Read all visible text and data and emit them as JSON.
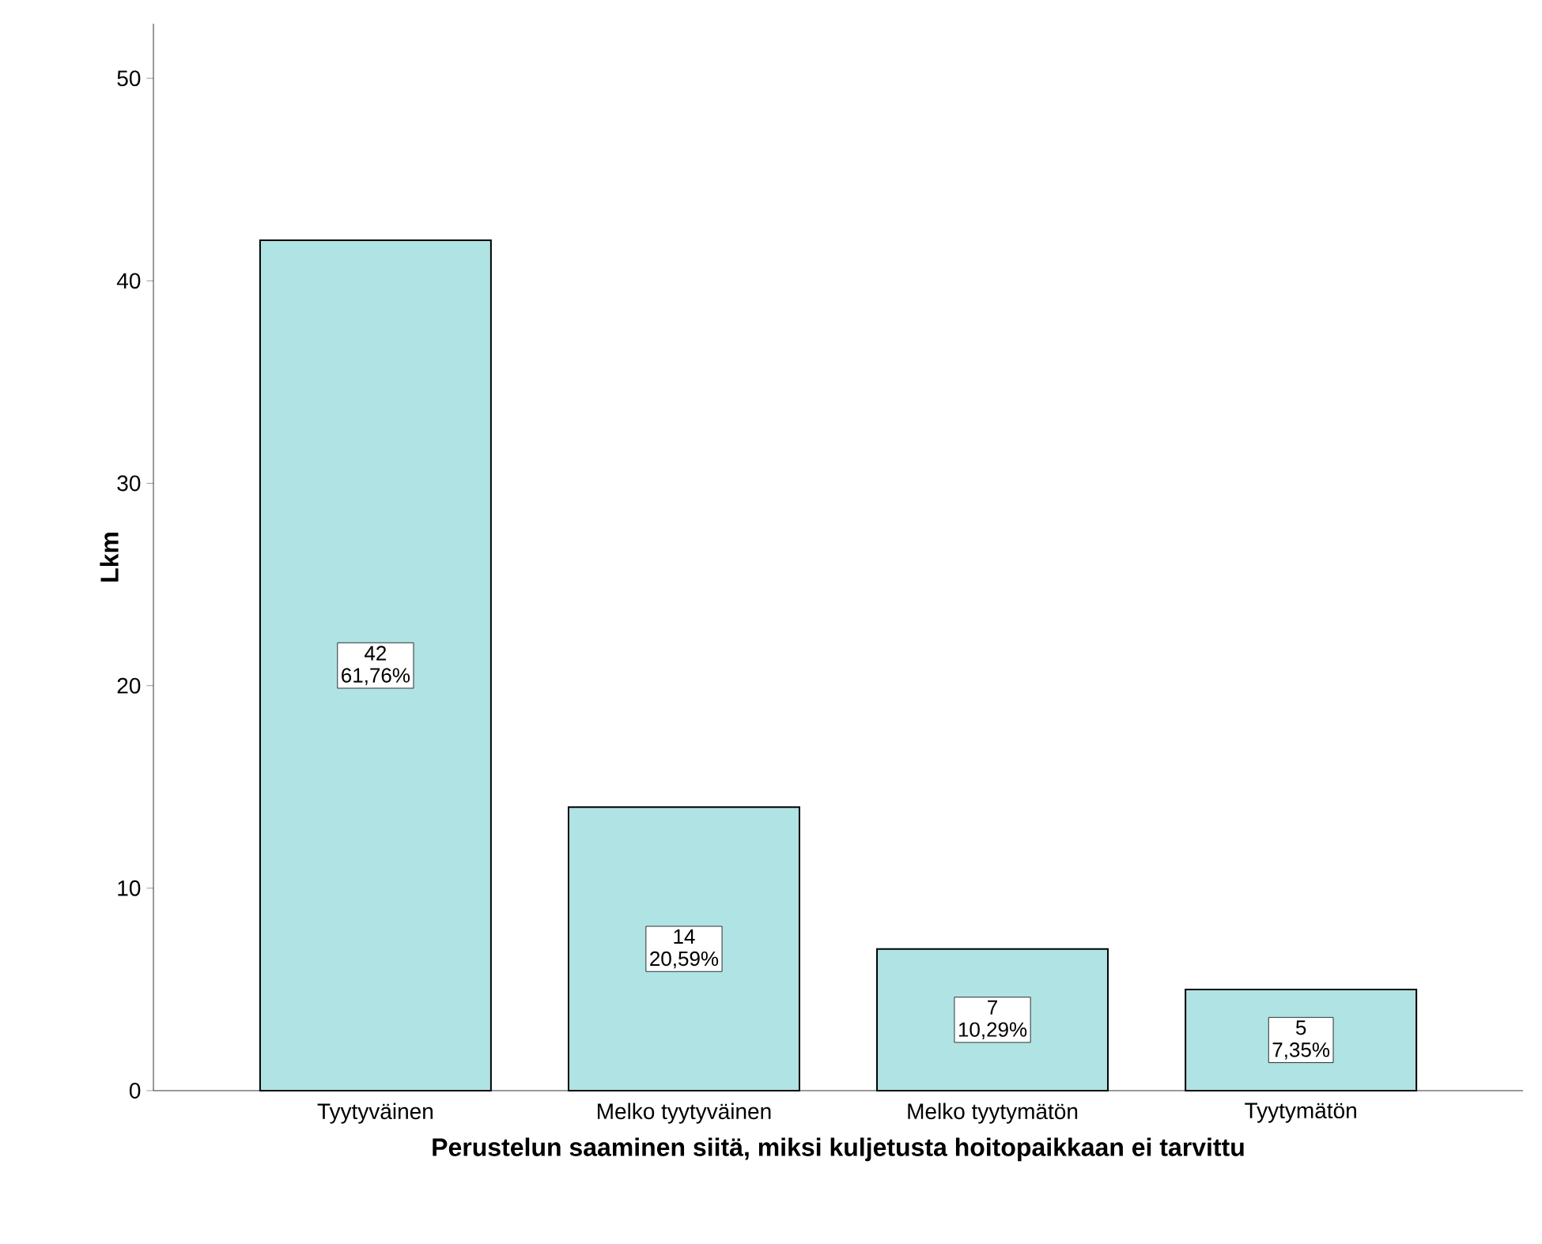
{
  "chart_data": {
    "type": "bar",
    "xlabel": "Perustelun saaminen siitä, miksi kuljetusta hoitopaikkaan ei tarvittu",
    "ylabel": "Lkm",
    "categories": [
      "Tyytyväinen",
      "Melko tyytyväinen",
      "Melko tyytymätön",
      "Tyytymätön"
    ],
    "values": [
      42,
      14,
      7,
      5
    ],
    "value_labels": [
      "42",
      "14",
      "7",
      "5"
    ],
    "annotations": [
      "61,76%",
      "20,59%",
      "10,29%",
      "7,35%"
    ],
    "color": "#b0e3e3",
    "ylim": [
      0,
      52.7
    ],
    "yticks": [
      0,
      10,
      20,
      30,
      40,
      50
    ],
    "grid": false
  }
}
